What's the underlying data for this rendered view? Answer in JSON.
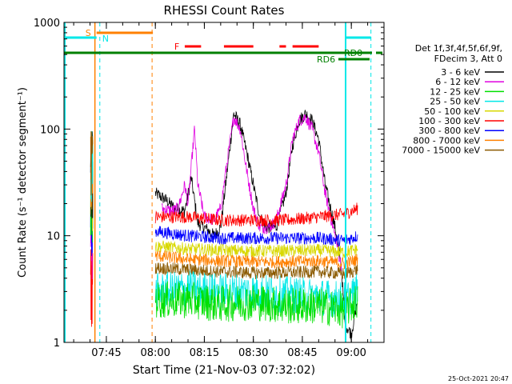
{
  "chart_data": {
    "type": "line",
    "title": "RHESSI Count Rates",
    "xlabel": "Start Time (21-Nov-03 07:32:02)",
    "ylabel": "Count Rate (s⁻¹ detector segment⁻¹)",
    "y_scale": "log",
    "ylim": [
      1,
      1000
    ],
    "y_ticks": [
      "1",
      "10",
      "100",
      "1000"
    ],
    "xlim": [
      "07:32:02",
      "09:10:00"
    ],
    "x_ticks": [
      "07:45",
      "08:00",
      "08:15",
      "08:30",
      "08:45",
      "09:00"
    ],
    "date_stamp": "25-Oct-2021 20:47",
    "legend": {
      "placement": "right",
      "header": [
        "Det 1f,3f,4f,5f,6f,9f,",
        "FDecim 3, Att 0"
      ],
      "entries": [
        {
          "label": "3 - 6 keV",
          "color": "#000000"
        },
        {
          "label": "6 - 12 keV",
          "color": "#e000e0"
        },
        {
          "label": "12 - 25 keV",
          "color": "#00e000"
        },
        {
          "label": "25 - 50 keV",
          "color": "#00e8e8"
        },
        {
          "label": "50 - 100 keV",
          "color": "#d8d800"
        },
        {
          "label": "100 - 300 keV",
          "color": "#ff0000"
        },
        {
          "label": "300 - 800 keV",
          "color": "#0000ff"
        },
        {
          "label": "800 - 7000 keV",
          "color": "#ff8000"
        },
        {
          "label": "7000 - 15000 keV",
          "color": "#8b5a00"
        }
      ]
    },
    "annotations": {
      "S": {
        "label": "S",
        "color": "#ff8000",
        "start": "07:42:00",
        "end": "07:59:00"
      },
      "N": {
        "label": "N",
        "color": "#00e8e8",
        "times": [
          "07:32:02",
          "07:42:00"
        ]
      },
      "F": {
        "label": "F",
        "color": "#ff0000",
        "segments": [
          [
            "08:09:00",
            "08:14:00"
          ],
          [
            "08:21:00",
            "08:30:00"
          ],
          [
            "08:38:00",
            "08:40:00"
          ],
          [
            "08:42:00",
            "08:50:00"
          ]
        ]
      },
      "RD0": {
        "label": "RD0",
        "color": "#008000"
      },
      "RD6": {
        "label": "RD6",
        "color": "#008000"
      },
      "eclipse": {
        "times": [
          "07:32:02",
          "08:58:00"
        ]
      },
      "cyan_dashed": [
        "07:43:00",
        "09:06:00"
      ],
      "orange_dashed": [
        "07:59:00"
      ],
      "orange_solid": [
        "07:41:30"
      ]
    },
    "series": [
      {
        "name": "3 - 6 keV",
        "color": "#000000",
        "points": [
          [
            "08:00",
            25
          ],
          [
            "08:03",
            22
          ],
          [
            "08:06",
            18
          ],
          [
            "08:09",
            17
          ],
          [
            "08:11",
            35
          ],
          [
            "08:13",
            13
          ],
          [
            "08:15",
            12
          ],
          [
            "08:18",
            10
          ],
          [
            "08:20",
            12
          ],
          [
            "08:22",
            40
          ],
          [
            "08:24",
            140
          ],
          [
            "08:26",
            110
          ],
          [
            "08:28",
            60
          ],
          [
            "08:30",
            30
          ],
          [
            "08:32",
            15
          ],
          [
            "08:34",
            12
          ],
          [
            "08:37",
            12
          ],
          [
            "08:40",
            25
          ],
          [
            "08:42",
            70
          ],
          [
            "08:44",
            120
          ],
          [
            "08:46",
            140
          ],
          [
            "08:48",
            120
          ],
          [
            "08:50",
            80
          ],
          [
            "08:52",
            30
          ],
          [
            "08:55",
            12
          ],
          [
            "08:57",
            5
          ],
          [
            "08:58",
            1.5
          ],
          [
            "09:00",
            1.2
          ],
          [
            "09:02",
            2.5
          ]
        ]
      },
      {
        "name": "6 - 12 keV",
        "color": "#e000e0",
        "points": [
          [
            "08:02",
            18
          ],
          [
            "08:05",
            17
          ],
          [
            "08:07",
            18
          ],
          [
            "08:09",
            30
          ],
          [
            "08:10",
            20
          ],
          [
            "08:12",
            100
          ],
          [
            "08:13",
            30
          ],
          [
            "08:15",
            15
          ],
          [
            "08:18",
            14
          ],
          [
            "08:20",
            18
          ],
          [
            "08:22",
            50
          ],
          [
            "08:24",
            130
          ],
          [
            "08:26",
            100
          ],
          [
            "08:28",
            40
          ],
          [
            "08:30",
            18
          ],
          [
            "08:32",
            12
          ],
          [
            "08:35",
            12
          ],
          [
            "08:37",
            14
          ],
          [
            "08:40",
            30
          ],
          [
            "08:42",
            80
          ],
          [
            "08:44",
            120
          ],
          [
            "08:46",
            130
          ],
          [
            "08:48",
            100
          ],
          [
            "08:50",
            60
          ],
          [
            "08:52",
            25
          ],
          [
            "08:55",
            10
          ],
          [
            "08:57",
            5
          ]
        ]
      },
      {
        "name": "100 - 300 keV",
        "color": "#ff0000",
        "points": [
          [
            "08:00",
            15
          ],
          [
            "08:10",
            15
          ],
          [
            "08:20",
            14
          ],
          [
            "08:30",
            14
          ],
          [
            "08:40",
            14
          ],
          [
            "08:50",
            15
          ],
          [
            "08:58",
            16
          ],
          [
            "09:02",
            18
          ]
        ]
      },
      {
        "name": "300 - 800 keV",
        "color": "#0000ff",
        "points": [
          [
            "08:00",
            11
          ],
          [
            "08:10",
            10
          ],
          [
            "08:20",
            9.5
          ],
          [
            "08:30",
            9.5
          ],
          [
            "08:40",
            9.5
          ],
          [
            "08:50",
            9.5
          ],
          [
            "08:58",
            9
          ],
          [
            "09:02",
            10
          ]
        ]
      },
      {
        "name": "50 - 100 keV",
        "color": "#d8d800",
        "points": [
          [
            "08:00",
            8
          ],
          [
            "08:10",
            7.5
          ],
          [
            "08:20",
            7.3
          ],
          [
            "08:30",
            7.2
          ],
          [
            "08:40",
            7.2
          ],
          [
            "08:50",
            7.3
          ],
          [
            "08:58",
            7
          ],
          [
            "09:02",
            7.5
          ]
        ]
      },
      {
        "name": "800 - 7000 keV",
        "color": "#ff8000",
        "points": [
          [
            "08:00",
            6.5
          ],
          [
            "08:10",
            6
          ],
          [
            "08:20",
            5.8
          ],
          [
            "08:30",
            5.7
          ],
          [
            "08:40",
            5.7
          ],
          [
            "08:50",
            5.8
          ],
          [
            "08:58",
            5.5
          ],
          [
            "09:02",
            6
          ]
        ]
      },
      {
        "name": "7000 - 15000 keV",
        "color": "#8b5a00",
        "points": [
          [
            "08:00",
            5
          ],
          [
            "08:10",
            4.8
          ],
          [
            "08:20",
            4.6
          ],
          [
            "08:30",
            4.5
          ],
          [
            "08:40",
            4.5
          ],
          [
            "08:50",
            4.6
          ],
          [
            "08:58",
            4.4
          ],
          [
            "09:02",
            4.8
          ]
        ]
      },
      {
        "name": "25 - 50 keV",
        "color": "#00e8e8",
        "points": [
          [
            "08:00",
            3
          ],
          [
            "08:10",
            3.2
          ],
          [
            "08:20",
            3
          ],
          [
            "08:30",
            3
          ],
          [
            "08:40",
            2.8
          ],
          [
            "08:50",
            2.7
          ],
          [
            "08:58",
            2.5
          ],
          [
            "09:02",
            3
          ]
        ]
      },
      {
        "name": "12 - 25 keV",
        "color": "#00e000",
        "points": [
          [
            "08:00",
            2.5
          ],
          [
            "08:10",
            2.5
          ],
          [
            "08:20",
            2.3
          ],
          [
            "08:30",
            2.4
          ],
          [
            "08:40",
            2.2
          ],
          [
            "08:50",
            2.2
          ],
          [
            "08:58",
            2
          ],
          [
            "09:02",
            2.5
          ]
        ]
      }
    ]
  }
}
